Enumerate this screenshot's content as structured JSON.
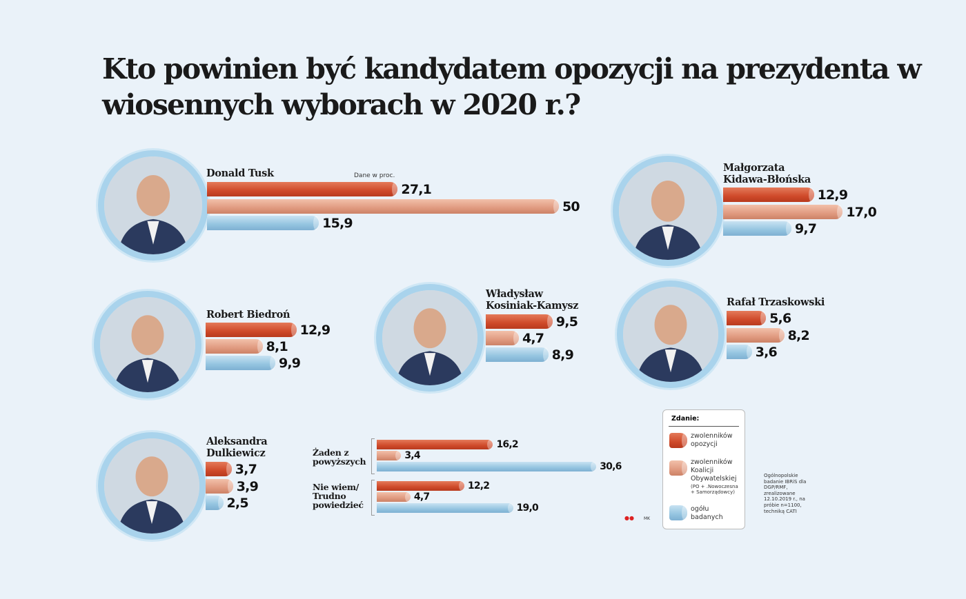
{
  "chart_data": {
    "type": "bar",
    "title": "Kto powinien być kandydatem opozycji na prezydenta w wiosennych wyborach  w 2020 r.?",
    "unit_note": "Dane w proc.",
    "legend": {
      "title": "Zdanie:",
      "placement": "bottom-right",
      "entries": [
        {
          "label": "zwolenników opozycji",
          "color": "#d4512f"
        },
        {
          "label": "zwolenników Koalicji Obywatelskiej",
          "note": "(PO + .Nowoczesna + Samorządowcy)",
          "color": "#e8a88e"
        },
        {
          "label": "ogółu badanych",
          "color": "#a3cde6"
        }
      ]
    },
    "categories": [
      {
        "name": "Donald Tusk",
        "values": [
          27.1,
          50,
          15.9
        ],
        "labels": [
          "27,1",
          "50",
          "15,9"
        ]
      },
      {
        "name": "Małgorzata Kidawa-Błońska",
        "values": [
          12.9,
          17.0,
          9.7
        ],
        "labels": [
          "12,9",
          "17,0",
          "9,7"
        ]
      },
      {
        "name": "Robert Biedroń",
        "values": [
          12.9,
          8.1,
          9.9
        ],
        "labels": [
          "12,9",
          "8,1",
          "9,9"
        ]
      },
      {
        "name": "Władysław Kosiniak-Kamysz",
        "values": [
          9.5,
          4.7,
          8.9
        ],
        "labels": [
          "9,5",
          "4,7",
          "8,9"
        ]
      },
      {
        "name": "Rafał Trzaskowski",
        "values": [
          5.6,
          8.2,
          3.6
        ],
        "labels": [
          "5,6",
          "8,2",
          "3,6"
        ]
      },
      {
        "name": "Aleksandra Dulkiewicz",
        "values": [
          3.7,
          3.9,
          2.5
        ],
        "labels": [
          "3,7",
          "3,9",
          "2,5"
        ]
      },
      {
        "name": "Żaden z powyższych",
        "values": [
          16.2,
          3.4,
          30.6
        ],
        "labels": [
          "16,2",
          "3,4",
          "30,6"
        ]
      },
      {
        "name": "Nie wiem/ Trudno powiedzieć",
        "values": [
          12.2,
          4.7,
          19.0
        ],
        "labels": [
          "12,2",
          "4,7",
          "19,0"
        ]
      }
    ]
  },
  "source": "Ogólnopolskie badanie IBRiS dla DGP/RMF, zrealizowane 12.10.2019 r., na próbie n=1100, techniką CATI",
  "author": "MK",
  "logo": "DGP"
}
